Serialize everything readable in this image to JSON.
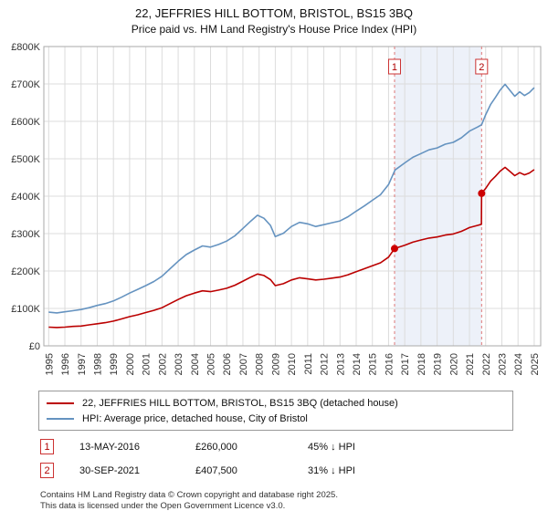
{
  "header": {
    "title": "22, JEFFRIES HILL BOTTOM, BRISTOL, BS15 3BQ",
    "subtitle": "Price paid vs. HM Land Registry's House Price Index (HPI)"
  },
  "chart_data": {
    "type": "line",
    "title": "22, JEFFRIES HILL BOTTOM, BRISTOL, BS15 3BQ",
    "subtitle": "Price paid vs. HM Land Registry's House Price Index (HPI)",
    "xlim": [
      1994.7,
      2025.4
    ],
    "ylim": [
      0,
      800000
    ],
    "grid": true,
    "x_ticks": [
      1995,
      1996,
      1997,
      1998,
      1999,
      2000,
      2001,
      2002,
      2003,
      2004,
      2005,
      2006,
      2007,
      2008,
      2009,
      2010,
      2011,
      2012,
      2013,
      2014,
      2015,
      2016,
      2017,
      2018,
      2019,
      2020,
      2021,
      2022,
      2023,
      2024,
      2025
    ],
    "y_ticks": [
      {
        "v": 0,
        "label": "£0"
      },
      {
        "v": 100000,
        "label": "£100K"
      },
      {
        "v": 200000,
        "label": "£200K"
      },
      {
        "v": 300000,
        "label": "£300K"
      },
      {
        "v": 400000,
        "label": "£400K"
      },
      {
        "v": 500000,
        "label": "£500K"
      },
      {
        "v": 600000,
        "label": "£600K"
      },
      {
        "v": 700000,
        "label": "£700K"
      },
      {
        "v": 800000,
        "label": "£800K"
      }
    ],
    "band": {
      "from": 2016.37,
      "to": 2021.75,
      "color": "#edf1f9"
    },
    "series": [
      {
        "name": "22, JEFFRIES HILL BOTTOM, BRISTOL, BS15 3BQ (detached house)",
        "color": "#bb0000",
        "x": [
          1995.0,
          1995.5,
          1996.0,
          1996.5,
          1997.0,
          1997.5,
          1998.0,
          1998.5,
          1999.0,
          1999.5,
          2000.0,
          2000.5,
          2001.0,
          2001.5,
          2002.0,
          2002.5,
          2003.0,
          2003.5,
          2004.0,
          2004.5,
          2005.0,
          2005.5,
          2006.0,
          2006.5,
          2007.0,
          2007.5,
          2007.9,
          2008.3,
          2008.7,
          2009.0,
          2009.5,
          2010.0,
          2010.5,
          2011.0,
          2011.5,
          2012.0,
          2012.5,
          2013.0,
          2013.5,
          2014.0,
          2014.5,
          2015.0,
          2015.5,
          2016.0,
          2016.37,
          2017.0,
          2017.5,
          2018.0,
          2018.5,
          2019.0,
          2019.5,
          2020.0,
          2020.5,
          2021.0,
          2021.5,
          2021.74,
          2021.75,
          2022.0,
          2022.3,
          2022.6,
          2022.9,
          2023.2,
          2023.5,
          2023.8,
          2024.1,
          2024.4,
          2024.7,
          2025.0
        ],
        "y": [
          50000,
          49000,
          50000,
          52000,
          53000,
          56000,
          59000,
          62000,
          66000,
          72000,
          78000,
          83000,
          89000,
          95000,
          102000,
          113000,
          124000,
          134000,
          141000,
          147000,
          145000,
          149000,
          154000,
          162000,
          173000,
          184000,
          192000,
          188000,
          177000,
          161000,
          166000,
          176000,
          182000,
          179000,
          176000,
          178000,
          181000,
          184000,
          190000,
          198000,
          206000,
          214000,
          222000,
          237000,
          260000,
          269000,
          277000,
          283000,
          288000,
          291000,
          296000,
          299000,
          306000,
          316000,
          322000,
          325000,
          407500,
          421000,
          440000,
          453000,
          467000,
          477000,
          466000,
          455000,
          463000,
          457000,
          462000,
          471000
        ]
      },
      {
        "name": "HPI: Average price, detached house, City of Bristol",
        "color": "#6593c0",
        "x": [
          1995.0,
          1995.5,
          1996.0,
          1996.5,
          1997.0,
          1997.5,
          1998.0,
          1998.5,
          1999.0,
          1999.5,
          2000.0,
          2000.5,
          2001.0,
          2001.5,
          2002.0,
          2002.5,
          2003.0,
          2003.5,
          2004.0,
          2004.5,
          2005.0,
          2005.5,
          2006.0,
          2006.5,
          2007.0,
          2007.5,
          2007.9,
          2008.3,
          2008.7,
          2009.0,
          2009.5,
          2010.0,
          2010.5,
          2011.0,
          2011.5,
          2012.0,
          2012.5,
          2013.0,
          2013.5,
          2014.0,
          2014.5,
          2015.0,
          2015.5,
          2016.0,
          2016.4,
          2017.0,
          2017.5,
          2018.0,
          2018.5,
          2019.0,
          2019.5,
          2020.0,
          2020.5,
          2021.0,
          2021.5,
          2021.75,
          2022.0,
          2022.3,
          2022.6,
          2022.9,
          2023.2,
          2023.5,
          2023.8,
          2024.1,
          2024.4,
          2024.7,
          2025.0
        ],
        "y": [
          90000,
          88000,
          91000,
          94000,
          97000,
          102000,
          108000,
          113000,
          120000,
          130000,
          141000,
          151000,
          161000,
          172000,
          186000,
          206000,
          226000,
          244000,
          256000,
          267000,
          264000,
          271000,
          280000,
          294000,
          314000,
          334000,
          349000,
          341000,
          322000,
          292000,
          301000,
          319000,
          330000,
          326000,
          319000,
          324000,
          329000,
          334000,
          345000,
          360000,
          374000,
          389000,
          404000,
          431000,
          470000,
          489000,
          504000,
          514000,
          524000,
          529000,
          539000,
          544000,
          556000,
          574000,
          585000,
          591000,
          618000,
          645000,
          664000,
          684000,
          699000,
          683000,
          667000,
          679000,
          669000,
          677000,
          690000
        ]
      }
    ],
    "sales": [
      {
        "n": "1",
        "x": 2016.37,
        "y": 260000,
        "date": "13-MAY-2016",
        "price": "£260,000",
        "hpi": "45% ↓ HPI"
      },
      {
        "n": "2",
        "x": 2021.75,
        "y": 407500,
        "date": "30-SEP-2021",
        "price": "£407,500",
        "hpi": "31% ↓ HPI"
      }
    ],
    "legend_position": "bottom"
  },
  "footer": {
    "line1": "Contains HM Land Registry data © Crown copyright and database right 2025.",
    "line2": "This data is licensed under the Open Government Licence v3.0."
  }
}
